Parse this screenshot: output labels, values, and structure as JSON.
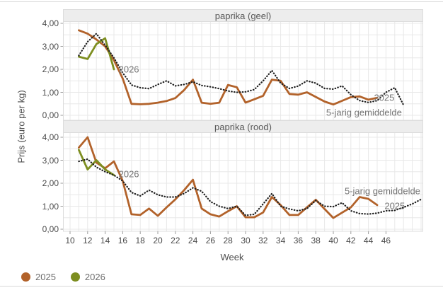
{
  "figure": {
    "y_axis_title": "Prijs (euro per kg)",
    "x_axis_title": "Week",
    "background": "#ffffff",
    "divider_color": "#d9d9d9",
    "grid_color": "#e8e8e8",
    "panel_border_color": "#dcdcdc",
    "strip_background": "#ededed",
    "tick_color": "#9d9d9d"
  },
  "legend": {
    "items": [
      {
        "label": "2025",
        "color": "#b2622a",
        "marker": "circle-icon"
      },
      {
        "label": "2026",
        "color": "#7d8e20",
        "marker": "circle-icon"
      }
    ]
  },
  "chart_data": [
    {
      "type": "line",
      "title": "paprika (geel)",
      "xlabel": "Week",
      "ylabel": "Prijs (euro per kg)",
      "xlim": [
        9.3,
        50.3
      ],
      "ylim": [
        -0.2,
        4.1
      ],
      "x_ticks": [
        10,
        12,
        14,
        16,
        18,
        20,
        22,
        24,
        26,
        28,
        30,
        32,
        34,
        36,
        38,
        40,
        42,
        44,
        46
      ],
      "y_tick_labels": [
        "0,00",
        "1,00",
        "2,00",
        "3,00",
        "4,00"
      ],
      "grid": true,
      "series": [
        {
          "name": "2025",
          "color": "#b2622a",
          "line_style": "solid",
          "start_week": 11,
          "values": [
            3.7,
            3.55,
            3.3,
            3.0,
            2.4,
            1.6,
            0.5,
            0.48,
            0.5,
            0.55,
            0.62,
            0.75,
            1.1,
            1.55,
            0.55,
            0.5,
            0.55,
            1.32,
            1.22,
            0.55,
            0.7,
            0.85,
            1.55,
            1.5,
            0.93,
            0.9,
            1.0,
            0.8,
            0.6,
            0.47,
            0.63,
            0.79,
            0.82,
            0.68,
            0.76
          ]
        },
        {
          "name": "2026",
          "color": "#7d8e20",
          "line_style": "solid",
          "start_week": 11,
          "values": [
            2.55,
            2.45,
            3.1,
            3.35,
            2.0
          ]
        },
        {
          "name": "5-jarig gemiddelde",
          "color": "#1f1f1f",
          "line_style": "dotted",
          "start_week": 11,
          "values": [
            2.6,
            3.2,
            3.55,
            3.05,
            2.5,
            1.85,
            1.32,
            1.2,
            1.16,
            1.34,
            1.5,
            1.28,
            1.34,
            1.46,
            1.3,
            1.24,
            1.16,
            1.06,
            1.0,
            1.02,
            1.12,
            1.5,
            1.95,
            1.4,
            1.17,
            1.27,
            1.5,
            1.4,
            1.17,
            1.14,
            1.28,
            0.9,
            0.64,
            0.56,
            0.64,
            1.0,
            1.2,
            0.45
          ]
        }
      ],
      "annotations": [
        {
          "text": "2026",
          "week": 16.7,
          "value": 2.0
        },
        {
          "text": "2025",
          "week": 45.8,
          "value": 0.77
        },
        {
          "text": "5-jarig gemiddelde",
          "week": 43.5,
          "value": 0.12
        }
      ]
    },
    {
      "type": "line",
      "title": "paprika (rood)",
      "xlabel": "Week",
      "ylabel": "Prijs (euro per kg)",
      "xlim": [
        9.3,
        50.3
      ],
      "ylim": [
        -0.1,
        4.2
      ],
      "x_ticks": [
        10,
        12,
        14,
        16,
        18,
        20,
        22,
        24,
        26,
        28,
        30,
        32,
        34,
        36,
        38,
        40,
        42,
        44,
        46
      ],
      "y_tick_labels": [
        "0,00",
        "1,00",
        "2,00",
        "3,00",
        "4,00"
      ],
      "grid": true,
      "series": [
        {
          "name": "2025",
          "color": "#b2622a",
          "line_style": "solid",
          "start_week": 11,
          "values": [
            3.55,
            4.0,
            2.9,
            2.65,
            2.95,
            2.1,
            0.65,
            0.62,
            0.9,
            0.58,
            0.95,
            1.3,
            1.7,
            2.15,
            0.9,
            0.65,
            0.55,
            0.78,
            1.0,
            0.52,
            0.52,
            0.73,
            1.4,
            1.05,
            0.62,
            0.62,
            0.95,
            1.28,
            0.88,
            0.49,
            0.72,
            0.95,
            1.4,
            1.32,
            1.05
          ]
        },
        {
          "name": "2026",
          "color": "#7d8e20",
          "line_style": "solid",
          "start_week": 11,
          "values": [
            3.45,
            2.6,
            3.0,
            2.6,
            2.35
          ]
        },
        {
          "name": "5-jarig gemiddelde",
          "color": "#1f1f1f",
          "line_style": "dotted",
          "start_week": 11,
          "values": [
            2.95,
            3.05,
            2.7,
            2.5,
            2.35,
            2.1,
            1.6,
            1.45,
            1.7,
            1.5,
            1.4,
            1.4,
            1.55,
            1.8,
            1.65,
            1.2,
            1.0,
            0.9,
            1.0,
            0.6,
            0.65,
            1.1,
            1.55,
            1.0,
            0.88,
            0.8,
            0.9,
            1.25,
            1.0,
            0.98,
            1.15,
            0.8,
            0.68,
            0.66,
            0.7,
            0.8,
            0.82,
            0.95,
            1.1,
            1.3
          ]
        }
      ],
      "annotations": [
        {
          "text": "2026",
          "week": 16.7,
          "value": 2.4
        },
        {
          "text": "5-jarig gemiddelde",
          "week": 45.6,
          "value": 1.66
        },
        {
          "text": "2025",
          "week": 47.0,
          "value": 1.02
        }
      ]
    }
  ]
}
